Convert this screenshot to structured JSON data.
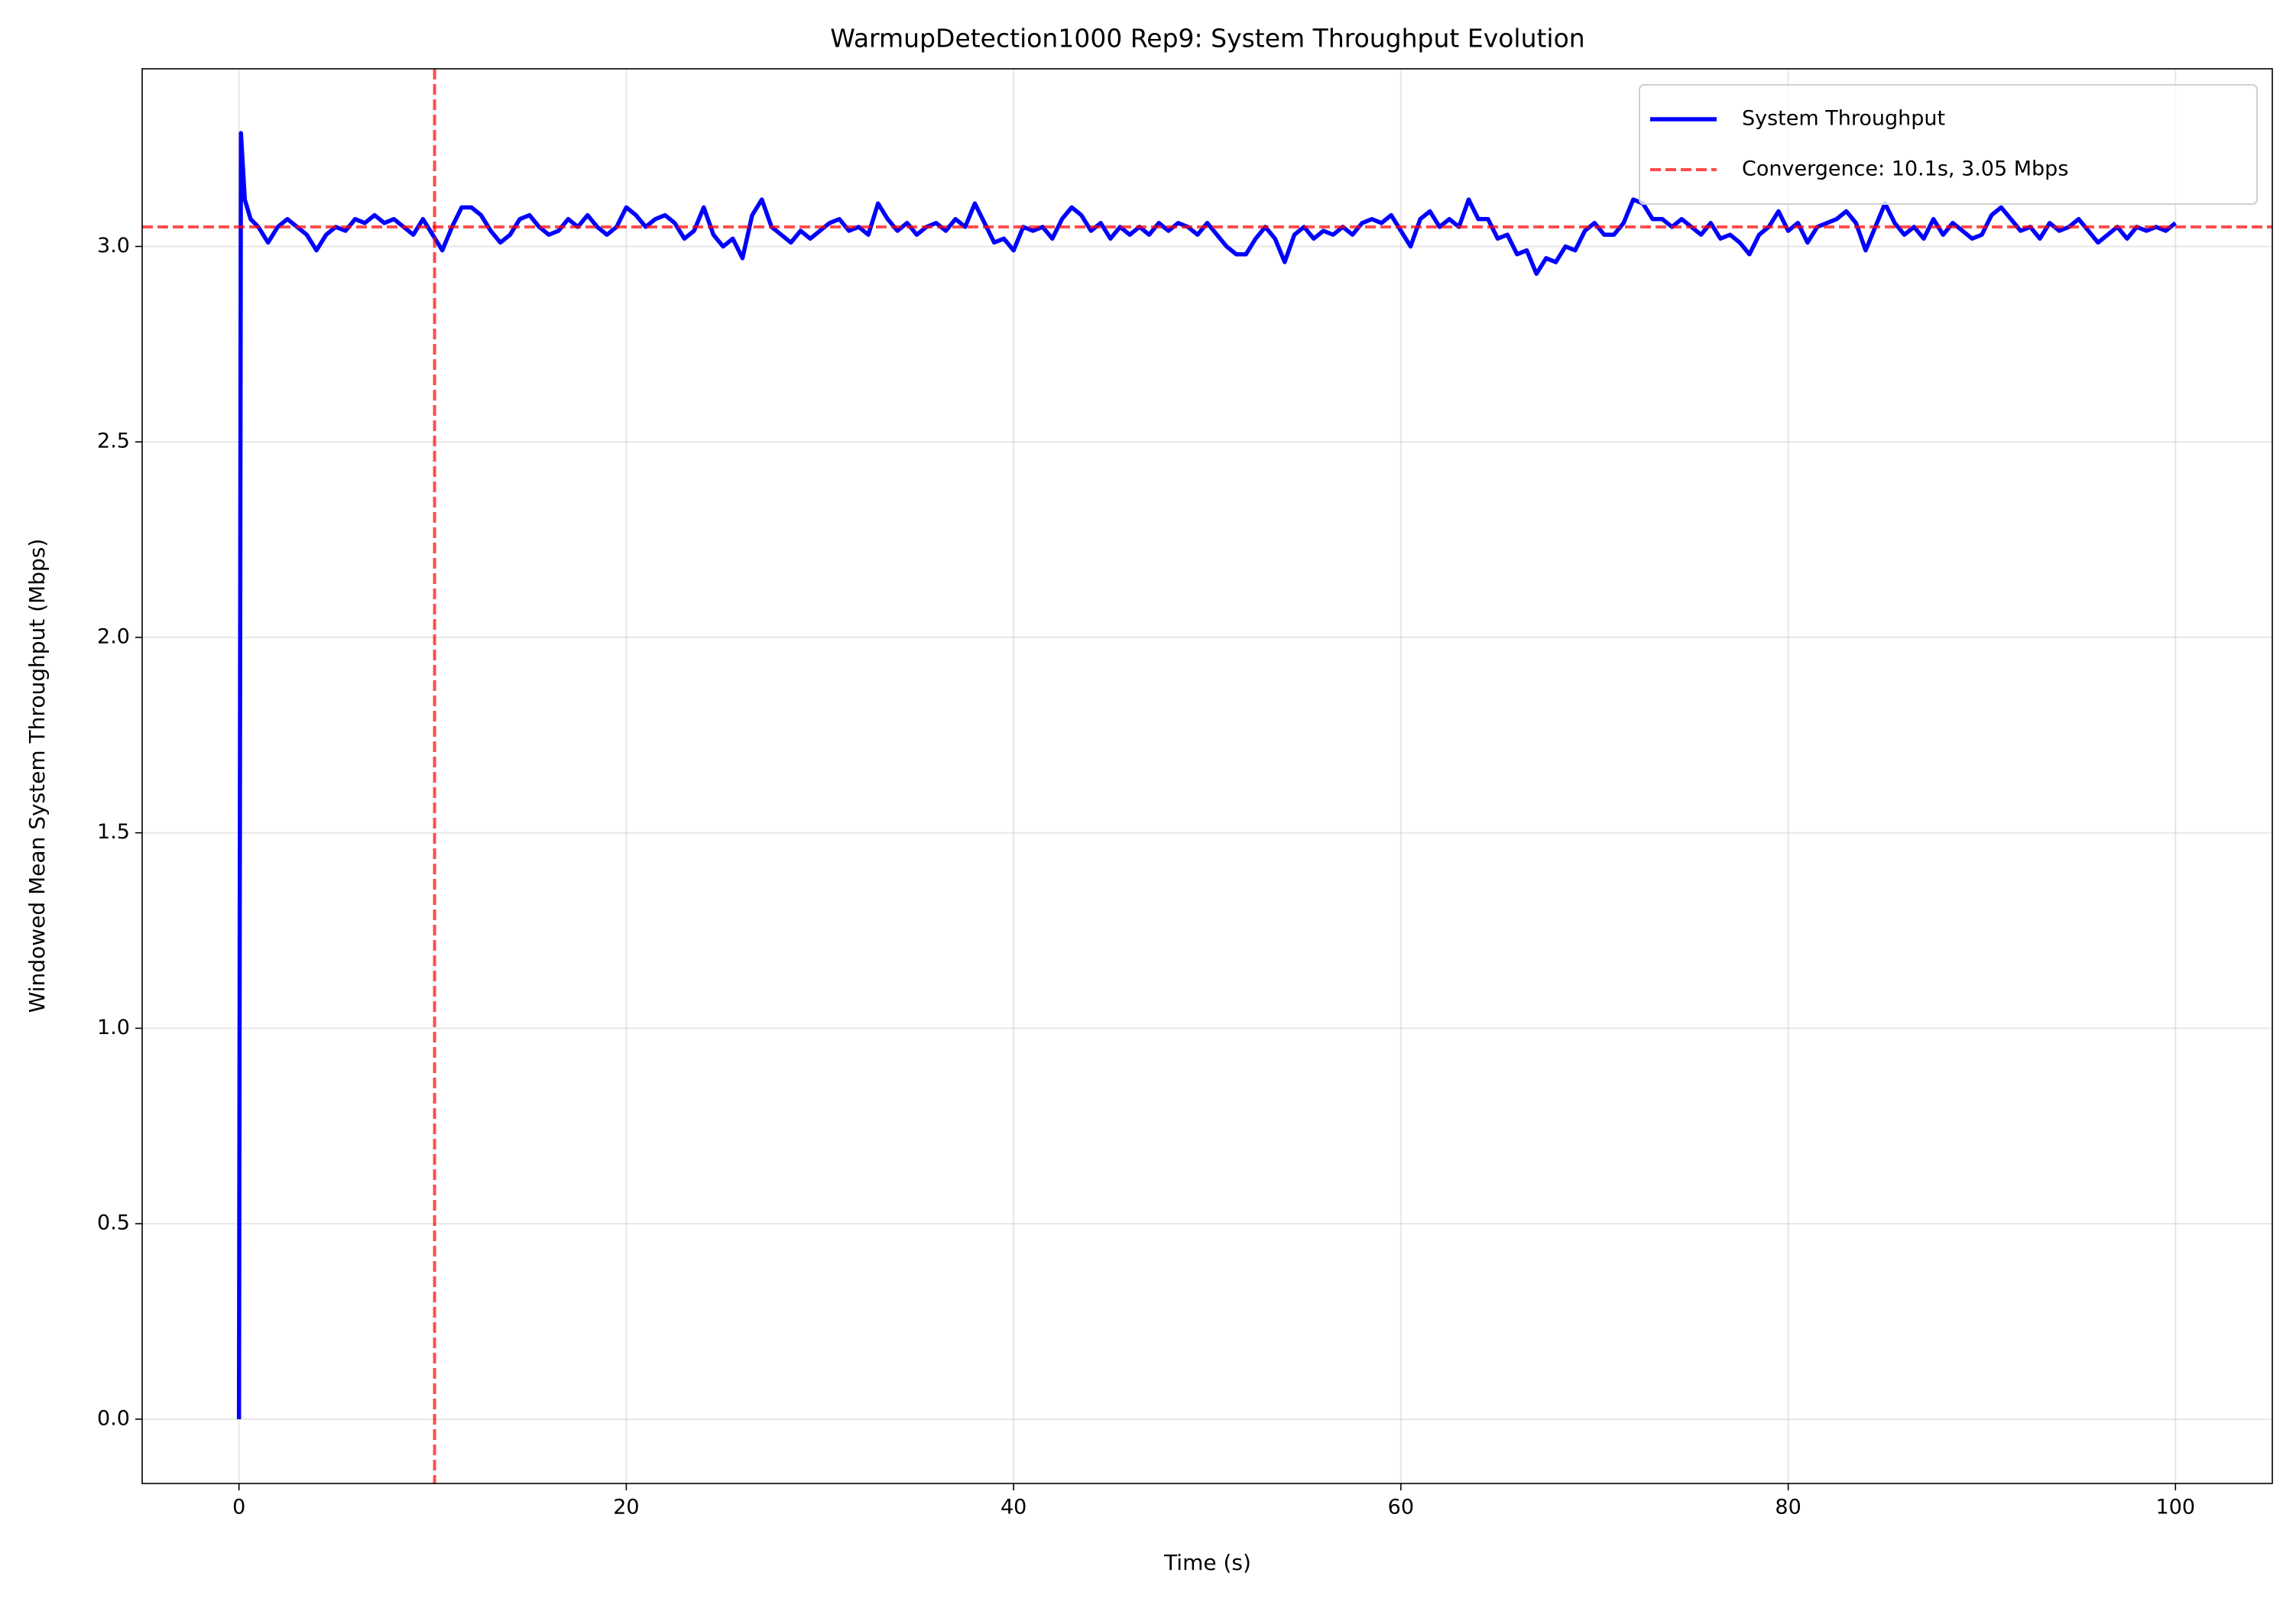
{
  "chart_data": {
    "type": "line",
    "title": "WarmupDetection1000 Rep9: System Throughput Evolution",
    "xlabel": "Time (s)",
    "ylabel": "Windowed Mean System Throughput (Mbps)",
    "x": [
      0,
      0.1,
      0.3,
      0.6,
      1,
      1.5,
      2,
      2.5,
      3,
      3.5,
      4,
      4.5,
      5,
      5.5,
      6,
      6.5,
      7,
      7.5,
      8,
      8.5,
      9,
      9.5,
      10,
      10.5,
      11,
      11.5,
      12,
      12.5,
      13,
      13.5,
      14,
      14.5,
      15,
      15.5,
      16,
      16.5,
      17,
      17.5,
      18,
      18.5,
      19,
      19.5,
      20,
      20.5,
      21,
      21.5,
      22,
      22.5,
      23,
      23.5,
      24,
      24.5,
      25,
      25.5,
      26,
      26.5,
      27,
      27.5,
      28,
      28.5,
      29,
      29.5,
      30,
      30.5,
      31,
      31.5,
      32,
      32.5,
      33,
      33.5,
      34,
      34.5,
      35,
      35.5,
      36,
      36.5,
      37,
      37.5,
      38,
      38.5,
      39,
      39.5,
      40,
      40.5,
      41,
      41.5,
      42,
      42.5,
      43,
      43.5,
      44,
      44.5,
      45,
      45.5,
      46,
      46.5,
      47,
      47.5,
      48,
      48.5,
      49,
      49.5,
      50,
      50.5,
      51,
      51.5,
      52,
      52.5,
      53,
      53.5,
      54,
      54.5,
      55,
      55.5,
      56,
      56.5,
      57,
      57.5,
      58,
      58.5,
      59,
      59.5,
      60,
      60.5,
      61,
      61.5,
      62,
      62.5,
      63,
      63.5,
      64,
      64.5,
      65,
      65.5,
      66,
      66.5,
      67,
      67.5,
      68,
      68.5,
      69,
      69.5,
      70,
      70.5,
      71,
      71.5,
      72,
      72.5,
      73,
      73.5,
      74,
      74.5,
      75,
      75.5,
      76,
      76.5,
      77,
      77.5,
      78,
      78.5,
      79,
      79.5,
      80,
      80.5,
      81,
      81.5,
      82,
      82.5,
      83,
      83.5,
      84,
      84.5,
      85,
      85.5,
      86,
      86.5,
      87,
      87.5,
      88,
      88.5,
      89,
      89.5,
      90,
      90.5,
      91,
      91.5,
      92,
      92.5,
      93,
      93.5,
      94,
      94.5,
      95,
      95.5,
      96,
      96.5,
      97,
      97.5,
      98,
      98.5,
      99,
      99.5,
      100
    ],
    "series": [
      {
        "name": "System Throughput",
        "color": "#0000ff",
        "values": [
          0,
          3.29,
          3.12,
          3.07,
          3.05,
          3.01,
          3.05,
          3.07,
          3.05,
          3.03,
          2.99,
          3.03,
          3.05,
          3.04,
          3.07,
          3.06,
          3.08,
          3.06,
          3.07,
          3.05,
          3.03,
          3.07,
          3.03,
          2.99,
          3.05,
          3.1,
          3.1,
          3.08,
          3.04,
          3.01,
          3.03,
          3.07,
          3.08,
          3.05,
          3.03,
          3.04,
          3.07,
          3.05,
          3.08,
          3.05,
          3.03,
          3.05,
          3.1,
          3.08,
          3.05,
          3.07,
          3.08,
          3.06,
          3.02,
          3.04,
          3.1,
          3.03,
          3.0,
          3.02,
          2.97,
          3.08,
          3.12,
          3.05,
          3.03,
          3.01,
          3.04,
          3.02,
          3.04,
          3.06,
          3.07,
          3.04,
          3.05,
          3.03,
          3.11,
          3.07,
          3.04,
          3.06,
          3.03,
          3.05,
          3.06,
          3.04,
          3.07,
          3.05,
          3.11,
          3.06,
          3.01,
          3.02,
          2.99,
          3.05,
          3.04,
          3.05,
          3.02,
          3.07,
          3.1,
          3.08,
          3.04,
          3.06,
          3.02,
          3.05,
          3.03,
          3.05,
          3.03,
          3.06,
          3.04,
          3.06,
          3.05,
          3.03,
          3.06,
          3.03,
          3.0,
          2.98,
          2.98,
          3.02,
          3.05,
          3.02,
          2.96,
          3.03,
          3.05,
          3.02,
          3.04,
          3.03,
          3.05,
          3.03,
          3.06,
          3.07,
          3.06,
          3.08,
          3.04,
          3.0,
          3.07,
          3.09,
          3.05,
          3.07,
          3.05,
          3.12,
          3.07,
          3.07,
          3.02,
          3.03,
          2.98,
          2.99,
          2.93,
          2.97,
          2.96,
          3.0,
          2.99,
          3.04,
          3.06,
          3.03,
          3.03,
          3.06,
          3.12,
          3.11,
          3.07,
          3.07,
          3.05,
          3.07,
          3.05,
          3.03,
          3.06,
          3.02,
          3.03,
          3.01,
          2.98,
          3.03,
          3.05,
          3.09,
          3.04,
          3.06,
          3.01,
          3.05,
          3.06,
          3.07,
          3.09,
          3.06,
          2.99,
          3.05,
          3.11,
          3.06,
          3.03,
          3.05,
          3.02,
          3.07,
          3.03,
          3.06,
          3.04,
          3.02,
          3.03,
          3.08,
          3.1,
          3.07,
          3.04,
          3.05,
          3.02,
          3.06,
          3.04,
          3.05,
          3.07,
          3.04,
          3.01,
          3.03,
          3.05,
          3.02,
          3.05,
          3.04,
          3.05,
          3.04,
          3.06
        ]
      }
    ],
    "reference_lines": [
      {
        "name": "Convergence: 10.1s, 3.05 Mbps",
        "color": "#ff0000",
        "x": 10.1,
        "y": 3.05
      }
    ],
    "xlim": [
      -5,
      105
    ],
    "xticks": [
      0,
      20,
      40,
      60,
      80,
      100
    ],
    "ylim": [
      -0.1645,
      3.4545
    ],
    "yticks": [
      {
        "value": 0,
        "label": "0.0"
      },
      0.5,
      {
        "value": 1,
        "label": "1.0"
      },
      1.5,
      {
        "value": 2,
        "label": "2.0"
      },
      2.5,
      {
        "value": 3,
        "label": "3.0"
      }
    ],
    "grid": true,
    "legend": "upper right"
  }
}
